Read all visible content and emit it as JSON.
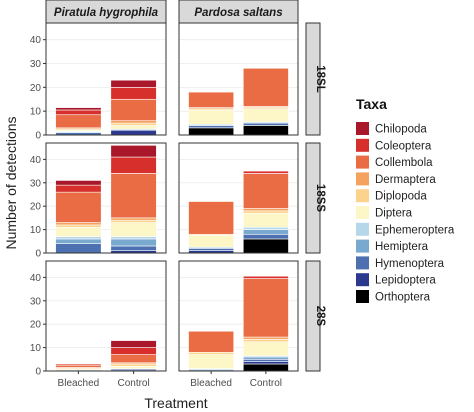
{
  "chart_data": {
    "type": "bar",
    "stacked": true,
    "facet_columns": [
      "Piratula hygrophila",
      "Pardosa saltans"
    ],
    "facet_rows": [
      "18SL",
      "18SS",
      "28S"
    ],
    "categories": [
      "Bleached",
      "Control"
    ],
    "xlabel": "Treatment",
    "ylabel": "Number of detections",
    "ylim": [
      0,
      47
    ],
    "yticks": [
      0,
      10,
      20,
      30,
      40
    ],
    "legend_title": "Taxa",
    "legend_position": "right",
    "grid": true,
    "taxa": [
      {
        "name": "Chilopoda",
        "color": "#a8182a"
      },
      {
        "name": "Coleoptera",
        "color": "#d7302c"
      },
      {
        "name": "Collembola",
        "color": "#ea6c45"
      },
      {
        "name": "Dermaptera",
        "color": "#f5a25e"
      },
      {
        "name": "Diplopoda",
        "color": "#fbd38d"
      },
      {
        "name": "Diptera",
        "color": "#fdf6c6"
      },
      {
        "name": "Ephemeroptera",
        "color": "#b6d7e9"
      },
      {
        "name": "Hemiptera",
        "color": "#7aa9d0"
      },
      {
        "name": "Hymenoptera",
        "color": "#4d71b0"
      },
      {
        "name": "Lepidoptera",
        "color": "#2b3a8e"
      },
      {
        "name": "Orthoptera",
        "color": "#000000"
      }
    ],
    "panels": [
      {
        "row": "18SL",
        "column": "Piratula hygrophila",
        "bars": [
          {
            "category": "Bleached",
            "counts": {
              "Hymenoptera": 1,
              "Ephemeroptera": 0.5,
              "Diptera": 0.5,
              "Diplopoda": 0.5,
              "Dermaptera": 0.5,
              "Collembola": 5.5,
              "Coleoptera": 2,
              "Chilopoda": 1
            }
          },
          {
            "category": "Control",
            "counts": {
              "Lepidoptera": 2,
              "Ephemeroptera": 0.5,
              "Diptera": 1.5,
              "Diplopoda": 1,
              "Dermaptera": 1,
              "Collembola": 9,
              "Coleoptera": 5,
              "Chilopoda": 3
            }
          }
        ]
      },
      {
        "row": "18SL",
        "column": "Pardosa saltans",
        "bars": [
          {
            "category": "Bleached",
            "counts": {
              "Orthoptera": 3,
              "Hymenoptera": 1,
              "Ephemeroptera": 0.5,
              "Diptera": 6,
              "Diplopoda": 0.5,
              "Dermaptera": 0.5,
              "Collembola": 6.5
            }
          },
          {
            "category": "Control",
            "counts": {
              "Orthoptera": 4,
              "Hymenoptera": 1,
              "Ephemeroptera": 0.5,
              "Diptera": 5.5,
              "Diplopoda": 0.5,
              "Dermaptera": 0.5,
              "Collembola": 16
            }
          }
        ]
      },
      {
        "row": "18SS",
        "column": "Piratula hygrophila",
        "bars": [
          {
            "category": "Bleached",
            "counts": {
              "Hymenoptera": 4,
              "Hemiptera": 2,
              "Ephemeroptera": 1,
              "Diptera": 4,
              "Diplopoda": 1,
              "Dermaptera": 1,
              "Collembola": 13,
              "Coleoptera": 3,
              "Chilopoda": 2
            }
          },
          {
            "category": "Control",
            "counts": {
              "Lepidoptera": 1,
              "Hymenoptera": 2,
              "Hemiptera": 3,
              "Ephemeroptera": 1,
              "Diptera": 6,
              "Diplopoda": 1,
              "Dermaptera": 1,
              "Collembola": 19,
              "Coleoptera": 7,
              "Chilopoda": 5
            }
          }
        ]
      },
      {
        "row": "18SS",
        "column": "Pardosa saltans",
        "bars": [
          {
            "category": "Bleached",
            "counts": {
              "Lepidoptera": 1,
              "Hymenoptera": 1,
              "Ephemeroptera": 0.5,
              "Diptera": 5,
              "Diplopoda": 0.5,
              "Collembola": 14
            }
          },
          {
            "category": "Control",
            "counts": {
              "Orthoptera": 6,
              "Hymenoptera": 2,
              "Hemiptera": 2,
              "Ephemeroptera": 1,
              "Diptera": 6,
              "Diplopoda": 1,
              "Dermaptera": 1,
              "Collembola": 15,
              "Coleoptera": 1
            }
          }
        ]
      },
      {
        "row": "28S",
        "column": "Piratula hygrophila",
        "bars": [
          {
            "category": "Bleached",
            "counts": {
              "Ephemeroptera": 0.5,
              "Diptera": 0.5,
              "Diplopoda": 0.5,
              "Collembola": 1,
              "Coleoptera": 0.5
            }
          },
          {
            "category": "Control",
            "counts": {
              "Lepidoptera": 0.5,
              "Hymenoptera": 0.5,
              "Diptera": 1,
              "Diplopoda": 1,
              "Dermaptera": 0.5,
              "Collembola": 3.5,
              "Coleoptera": 3,
              "Chilopoda": 3
            }
          }
        ]
      },
      {
        "row": "28S",
        "column": "Pardosa saltans",
        "bars": [
          {
            "category": "Bleached",
            "counts": {
              "Hymenoptera": 0.5,
              "Ephemeroptera": 0.5,
              "Diptera": 6,
              "Diplopoda": 1,
              "Collembola": 9
            }
          },
          {
            "category": "Control",
            "counts": {
              "Orthoptera": 3,
              "Lepidoptera": 1,
              "Hymenoptera": 1,
              "Hemiptera": 1,
              "Ephemeroptera": 0.5,
              "Diptera": 6,
              "Diplopoda": 1,
              "Dermaptera": 1,
              "Collembola": 25,
              "Coleoptera": 1
            }
          }
        ]
      }
    ]
  }
}
